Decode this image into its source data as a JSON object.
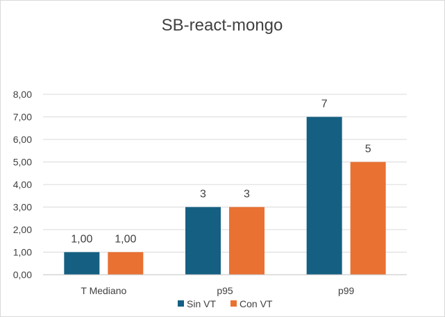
{
  "chart_data": {
    "type": "bar",
    "title": "SB-react-mongo",
    "categories": [
      "T Mediano",
      "p95",
      "p99"
    ],
    "series": [
      {
        "name": "Sin VT",
        "color": "#156082",
        "values": [
          1,
          3,
          7
        ],
        "data_labels": [
          "1,00",
          "3",
          "7"
        ]
      },
      {
        "name": "Con VT",
        "color": "#E97132",
        "values": [
          1,
          3,
          5
        ],
        "data_labels": [
          "1,00",
          "3",
          "5"
        ]
      }
    ],
    "ylim": [
      0,
      8
    ],
    "yticks": [
      "0,00",
      "1,00",
      "2,00",
      "3,00",
      "4,00",
      "5,00",
      "6,00",
      "7,00",
      "8,00"
    ],
    "grid": true,
    "legend_position": "bottom",
    "xlabel": "",
    "ylabel": ""
  }
}
